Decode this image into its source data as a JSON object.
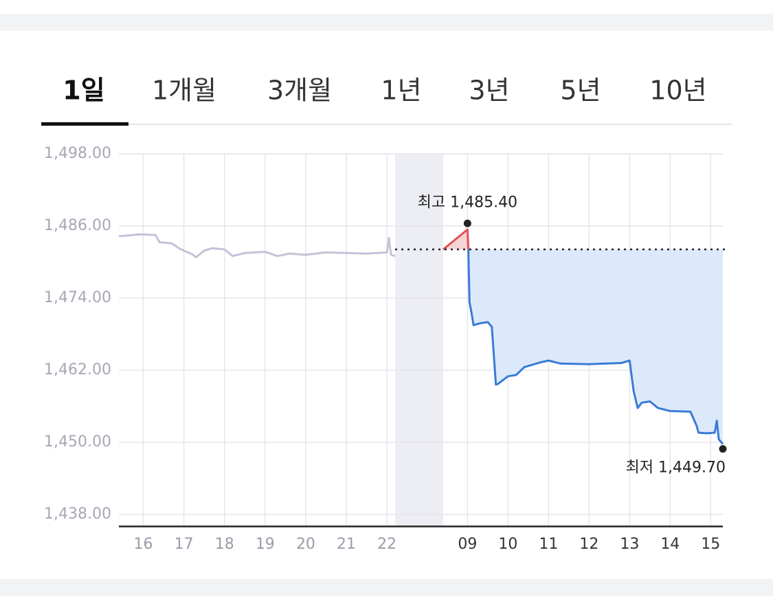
{
  "chart_data": {
    "type": "line",
    "tabs": [
      "1일",
      "1개월",
      "3개월",
      "1년",
      "3년",
      "5년",
      "10년"
    ],
    "selected_tab": 0,
    "ylim": [
      1436,
      1498
    ],
    "yticks": [
      {
        "value": 1438,
        "label": "1,438.00"
      },
      {
        "value": 1450,
        "label": "1,450.00"
      },
      {
        "value": 1462,
        "label": "1,462.00"
      },
      {
        "value": 1474,
        "label": "1,474.00"
      },
      {
        "value": 1486,
        "label": "1,486.00"
      },
      {
        "value": 1498,
        "label": "1,498.00"
      }
    ],
    "grid": true,
    "segments": [
      {
        "xlim": [
          15.4,
          22.2
        ],
        "xticks": [
          16,
          17,
          18,
          19,
          20,
          21,
          22
        ]
      },
      {
        "xlim": [
          8.4,
          15.3
        ],
        "xticks": [
          {
            "value": 9,
            "label": "09"
          },
          10,
          11,
          12,
          13,
          14,
          15
        ]
      }
    ],
    "reference_line": 1482.1,
    "series": [
      {
        "segment": 0,
        "color": "#c2c3d8",
        "x": [
          15.4,
          15.6,
          15.9,
          16.3,
          16.4,
          16.7,
          16.9,
          17.2,
          17.3,
          17.5,
          17.7,
          18.0,
          18.2,
          18.5,
          19.0,
          19.3,
          19.6,
          20.0,
          20.5,
          21.0,
          21.5,
          22.0,
          22.05,
          22.1,
          22.2
        ],
        "values": [
          1484.3,
          1484.4,
          1484.6,
          1484.5,
          1483.3,
          1483.1,
          1482.2,
          1481.3,
          1480.8,
          1481.9,
          1482.3,
          1482.1,
          1481.0,
          1481.5,
          1481.7,
          1481.0,
          1481.4,
          1481.2,
          1481.6,
          1481.5,
          1481.4,
          1481.6,
          1484.0,
          1481.2,
          1481.0
        ]
      },
      {
        "segment": 1,
        "color": "#3a7bd5",
        "up_color": "#e05252",
        "x": [
          8.4,
          9.0,
          9.02,
          9.05,
          9.1,
          9.15,
          9.3,
          9.5,
          9.6,
          9.65,
          9.7,
          9.75,
          10.0,
          10.2,
          10.4,
          10.8,
          11.0,
          11.3,
          12.0,
          12.8,
          13.0,
          13.1,
          13.2,
          13.3,
          13.5,
          13.7,
          14.0,
          14.5,
          14.65,
          14.7,
          14.9,
          15.1,
          15.15,
          15.2,
          15.3
        ],
        "values": [
          1482.1,
          1485.4,
          1482.1,
          1473.3,
          1471.5,
          1469.5,
          1469.8,
          1470.0,
          1469.2,
          1464.5,
          1459.6,
          1459.7,
          1461.0,
          1461.2,
          1462.5,
          1463.3,
          1463.6,
          1463.1,
          1463.0,
          1463.2,
          1463.6,
          1458.5,
          1455.7,
          1456.6,
          1456.8,
          1455.7,
          1455.2,
          1455.1,
          1452.8,
          1451.6,
          1451.5,
          1451.6,
          1453.6,
          1450.5,
          1449.7
        ]
      }
    ],
    "annotations": [
      {
        "text": "최고 1,485.40",
        "x": 9.0,
        "y": 1485.4
      },
      {
        "text": "최저 1,449.70",
        "x": 15.3,
        "y": 1449.7
      }
    ]
  }
}
